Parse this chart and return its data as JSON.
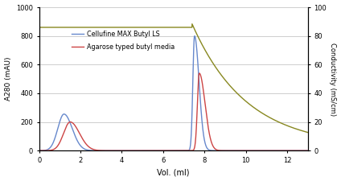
{
  "xlim": [
    0,
    13
  ],
  "ylim_left": [
    0,
    1000
  ],
  "ylim_right": [
    0,
    100
  ],
  "xlabel": "Vol. (ml)",
  "ylabel_left": "A280 (mAU)",
  "ylabel_right": "Conductivity (mS/cm)",
  "yticks_left": [
    0,
    200,
    400,
    600,
    800,
    1000
  ],
  "yticks_right": [
    0,
    20,
    40,
    60,
    80,
    100
  ],
  "xticks": [
    0,
    2,
    4,
    6,
    8,
    10,
    12
  ],
  "legend_blue": "Cellufine MAX Butyl LS",
  "legend_red": "Agarose typed butyl media",
  "color_blue": "#6688cc",
  "color_red": "#cc4444",
  "color_olive": "#888820",
  "background": "#ffffff",
  "grid_color": "#bbbbbb"
}
